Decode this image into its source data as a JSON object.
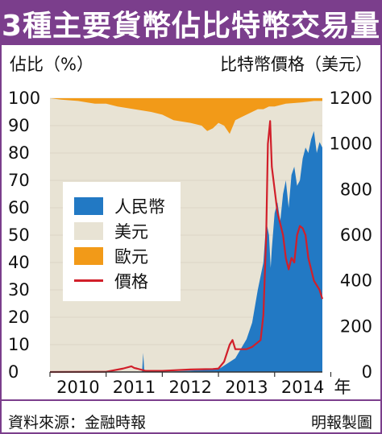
{
  "title": "3種主要貨幣佔比特幣交易量",
  "footer": {
    "source": "資料來源：金融時報",
    "credit": "明報製圖"
  },
  "chart_data": {
    "type": "area",
    "title": "3種主要貨幣佔比特幣交易量",
    "ylabel": "佔比（%）",
    "y2label": "比特幣價格（美元）",
    "xunit": "年",
    "ylim": [
      0,
      100
    ],
    "y2lim": [
      0,
      1200
    ],
    "yticks": [
      0,
      10,
      20,
      30,
      40,
      50,
      60,
      70,
      80,
      90,
      100
    ],
    "y2ticks": [
      0,
      200,
      400,
      600,
      800,
      1000,
      1200
    ],
    "xticks": [
      "2010",
      "2011",
      "2012",
      "2013",
      "2014"
    ],
    "xrange": [
      2010.0,
      2014.85
    ],
    "legend": [
      "人民幣",
      "美元",
      "歐元",
      "價格"
    ],
    "colors": {
      "cny": "#2279c4",
      "usd": "#e8e3d4",
      "eur": "#f29a18",
      "price": "#d11f2a"
    },
    "series": [
      {
        "name": "人民幣",
        "kind": "area",
        "stack_order": 1,
        "axis": "left",
        "x": [
          2010.0,
          2011.0,
          2011.5,
          2011.64,
          2011.66,
          2011.68,
          2012.0,
          2012.5,
          2013.0,
          2013.3,
          2013.5,
          2013.6,
          2013.7,
          2013.75,
          2013.8,
          2013.85,
          2013.9,
          2013.93,
          2013.95,
          2014.0,
          2014.05,
          2014.1,
          2014.15,
          2014.2,
          2014.25,
          2014.3,
          2014.35,
          2014.4,
          2014.45,
          2014.5,
          2014.55,
          2014.6,
          2014.65,
          2014.7,
          2014.75,
          2014.8,
          2014.85
        ],
        "values": [
          0,
          0,
          0,
          0,
          7,
          0,
          0,
          0.5,
          1,
          5,
          12,
          18,
          30,
          35,
          40,
          55,
          50,
          38,
          45,
          58,
          62,
          55,
          65,
          70,
          60,
          72,
          75,
          68,
          70,
          78,
          82,
          80,
          85,
          88,
          80,
          84,
          82
        ]
      },
      {
        "name": "歐元",
        "kind": "area",
        "stack_order": 3,
        "axis": "left",
        "x": [
          2010.0,
          2010.2,
          2010.5,
          2010.8,
          2011.0,
          2011.2,
          2011.5,
          2011.8,
          2012.0,
          2012.2,
          2012.5,
          2012.7,
          2012.8,
          2012.9,
          2013.0,
          2013.1,
          2013.2,
          2013.3,
          2013.4,
          2013.5,
          2013.6,
          2013.7,
          2013.8,
          2013.9,
          2014.0,
          2014.2,
          2014.5,
          2014.7,
          2014.85
        ],
        "values": [
          0,
          0.5,
          1,
          2,
          2,
          3,
          4,
          5,
          6,
          8,
          9,
          10,
          12,
          11,
          9,
          10,
          13,
          8,
          7,
          6,
          5,
          4,
          4,
          3,
          3,
          2,
          1.5,
          1,
          1
        ]
      },
      {
        "name": "價格",
        "kind": "line",
        "axis": "right",
        "x": [
          2010.0,
          2011.0,
          2011.3,
          2011.45,
          2011.5,
          2011.55,
          2011.7,
          2012.0,
          2012.5,
          2012.9,
          2013.0,
          2013.1,
          2013.2,
          2013.25,
          2013.3,
          2013.4,
          2013.5,
          2013.6,
          2013.7,
          2013.75,
          2013.8,
          2013.85,
          2013.88,
          2013.92,
          2013.95,
          2014.0,
          2014.05,
          2014.1,
          2014.15,
          2014.2,
          2014.25,
          2014.3,
          2014.35,
          2014.4,
          2014.45,
          2014.5,
          2014.55,
          2014.6,
          2014.65,
          2014.7,
          2014.75,
          2014.8,
          2014.85
        ],
        "values": [
          0,
          1,
          15,
          25,
          18,
          15,
          5,
          5,
          11,
          13,
          15,
          45,
          120,
          140,
          100,
          100,
          100,
          110,
          130,
          140,
          250,
          600,
          1000,
          1100,
          900,
          800,
          700,
          650,
          600,
          500,
          450,
          500,
          480,
          600,
          640,
          630,
          600,
          500,
          450,
          400,
          380,
          360,
          320
        ]
      }
    ]
  }
}
